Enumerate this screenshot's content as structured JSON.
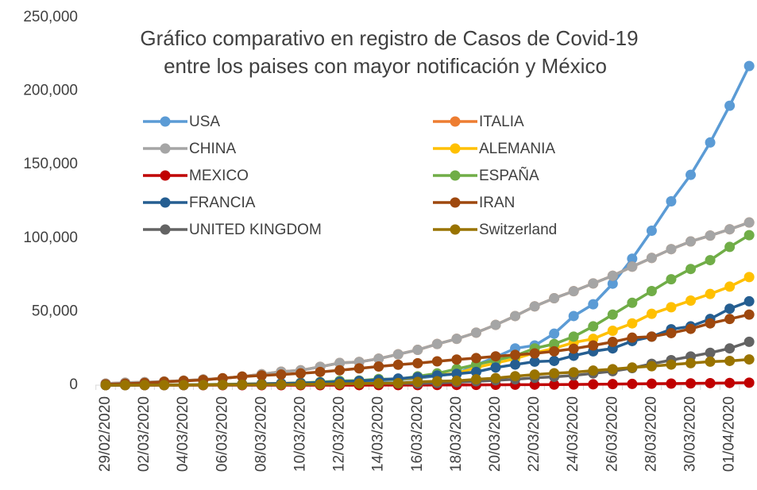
{
  "chart_data": {
    "type": "line",
    "title": [
      "Gráfico comparativo en registro de Casos de Covid-19",
      "entre los paises con mayor notificación y México"
    ],
    "categories": [
      "29/02/2020",
      null,
      "02/03/2020",
      null,
      "04/03/2020",
      null,
      "06/03/2020",
      null,
      "08/03/2020",
      null,
      "10/03/2020",
      null,
      "12/03/2020",
      null,
      "14/03/2020",
      null,
      "16/03/2020",
      null,
      "18/03/2020",
      null,
      "20/03/2020",
      null,
      "22/03/2020",
      null,
      "24/03/2020",
      null,
      "26/03/2020",
      null,
      "28/03/2020",
      null,
      "30/03/2020",
      null,
      "01/04/2020",
      null
    ],
    "ylim": [
      0,
      250000
    ],
    "yticks": [
      {
        "value": 0,
        "label": "0"
      },
      {
        "value": 50000,
        "label": "50,000"
      },
      {
        "value": 100000,
        "label": "100,000"
      },
      {
        "value": 150000,
        "label": "150,000"
      },
      {
        "value": 200000,
        "label": "200,000"
      },
      {
        "value": 250000,
        "label": "250,000"
      }
    ],
    "grid": false,
    "series": [
      {
        "name": "USA",
        "color": "#5b9bd5",
        "values": [
          70,
          80,
          100,
          120,
          150,
          220,
          320,
          430,
          550,
          700,
          1000,
          1300,
          1700,
          2200,
          2900,
          3500,
          4600,
          6400,
          7800,
          13700,
          19100,
          25000,
          27000,
          35000,
          47000,
          55000,
          69000,
          86000,
          105000,
          125000,
          143000,
          165000,
          190000,
          217000
        ]
      },
      {
        "name": "ITALIA",
        "color": "#ed7d31",
        "values": [
          1100,
          1700,
          2000,
          2500,
          3100,
          3900,
          4600,
          5900,
          7400,
          9200,
          10100,
          12500,
          15100,
          15800,
          18000,
          21000,
          24000,
          28000,
          31500,
          35700,
          41000,
          47000,
          53600,
          59100,
          63900,
          69200,
          74400,
          80600,
          86500,
          92500,
          97700,
          101700,
          106000,
          110600
        ]
      },
      {
        "name": "CHINA",
        "color": "#a5a5a5",
        "values": [
          1100,
          1700,
          2000,
          2500,
          3100,
          3900,
          4600,
          5900,
          7400,
          9200,
          10100,
          12500,
          15100,
          15800,
          18000,
          21000,
          24000,
          28000,
          31500,
          35700,
          41000,
          47000,
          53600,
          59100,
          63900,
          69200,
          74400,
          80600,
          86500,
          92500,
          97700,
          101700,
          106000,
          110600
        ]
      },
      {
        "name": "ALEMANIA",
        "color": "#ffc000",
        "values": [
          80,
          130,
          160,
          200,
          260,
          400,
          680,
          800,
          1000,
          1200,
          1600,
          2000,
          2700,
          3100,
          3700,
          4000,
          5000,
          7000,
          8000,
          12000,
          15000,
          18000,
          22000,
          25000,
          29000,
          31500,
          37000,
          42000,
          48500,
          53000,
          57500,
          62000,
          67000,
          73500
        ]
      },
      {
        "name": "MEXICO",
        "color": "#c00000",
        "values": [
          4,
          5,
          5,
          5,
          5,
          5,
          6,
          7,
          7,
          7,
          7,
          11,
          15,
          26,
          41,
          53,
          82,
          118,
          164,
          203,
          251,
          316,
          367,
          405,
          475,
          585,
          717,
          848,
          993,
          1094,
          1215,
          1378,
          1510,
          1690
        ]
      },
      {
        "name": "ESPAÑA",
        "color": "#70ad47",
        "values": [
          45,
          70,
          110,
          150,
          200,
          260,
          400,
          500,
          670,
          1000,
          1600,
          2100,
          2900,
          3100,
          4200,
          4000,
          6000,
          8000,
          11000,
          14000,
          17000,
          20000,
          25000,
          28000,
          33000,
          40000,
          48000,
          56000,
          64000,
          72000,
          79000,
          85000,
          94000,
          102000
        ]
      },
      {
        "name": "FRANCIA",
        "color": "#255e91",
        "values": [
          60,
          100,
          130,
          190,
          210,
          290,
          420,
          650,
          950,
          1200,
          1400,
          1800,
          2300,
          2900,
          3600,
          4500,
          5400,
          6600,
          7700,
          9000,
          12000,
          14000,
          16000,
          16500,
          20000,
          23000,
          25000,
          30000,
          33000,
          38000,
          40000,
          45000,
          52000,
          57000
        ]
      },
      {
        "name": "IRAN",
        "color": "#9e480e",
        "values": [
          600,
          1000,
          1500,
          2300,
          2900,
          3500,
          4700,
          5800,
          6600,
          7200,
          8000,
          9000,
          10100,
          11400,
          12700,
          13900,
          14900,
          16200,
          17400,
          18400,
          19600,
          20600,
          21600,
          23000,
          24800,
          27000,
          29400,
          32300,
          33000,
          35400,
          38300,
          42000,
          45000,
          48000
        ]
      },
      {
        "name": "UNITED KINGDOM",
        "color": "#636363",
        "values": [
          20,
          30,
          40,
          50,
          80,
          110,
          160,
          200,
          270,
          370,
          450,
          590,
          800,
          1100,
          1140,
          1140,
          1100,
          1500,
          2000,
          2600,
          3300,
          4000,
          5000,
          5700,
          6600,
          8000,
          9500,
          11600,
          14500,
          17000,
          19500,
          22000,
          25000,
          29500
        ]
      },
      {
        "name": "Switzerland",
        "color": "#997300",
        "values": [
          20,
          30,
          40,
          50,
          90,
          110,
          210,
          270,
          340,
          370,
          490,
          650,
          860,
          1100,
          1300,
          1400,
          2200,
          2700,
          3000,
          4000,
          4800,
          6100,
          7200,
          8100,
          8800,
          9900,
          10900,
          12000,
          12900,
          14000,
          15000,
          16000,
          16500,
          17500
        ]
      }
    ]
  }
}
